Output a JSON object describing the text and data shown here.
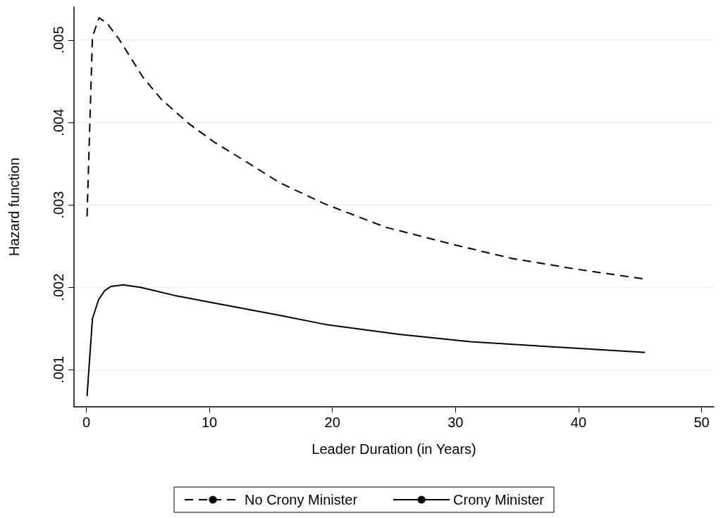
{
  "chart_data": {
    "type": "line",
    "xlabel": "Leader Duration (in Years)",
    "ylabel": "Hazard function",
    "xlim": [
      -1,
      51
    ],
    "xticks": [
      0,
      10,
      20,
      30,
      40,
      50
    ],
    "ylim": [
      0.00055,
      0.0054
    ],
    "yticks": [
      {
        "value": 0.001,
        "label": ".001"
      },
      {
        "value": 0.002,
        "label": ".002"
      },
      {
        "value": 0.003,
        "label": ".003"
      },
      {
        "value": 0.004,
        "label": ".004"
      },
      {
        "value": 0.005,
        "label": ".005"
      }
    ],
    "grid": "y",
    "legend": "bottom",
    "marker": "none",
    "series": [
      {
        "name": "No Crony Minister",
        "color": "#000000",
        "line_style": "dashed",
        "x": [
          0.06,
          0.5,
          1.04,
          1.7,
          2.66,
          4.6,
          6.1,
          8.3,
          10.4,
          12.6,
          15.7,
          19.4,
          24.3,
          29.5,
          34.6,
          39.8,
          45.4
        ],
        "values": [
          0.00286,
          0.00504,
          0.00527,
          0.0052,
          0.00501,
          0.00455,
          0.00428,
          0.00399,
          0.00376,
          0.00356,
          0.00327,
          0.00301,
          0.00273,
          0.00253,
          0.00235,
          0.00222,
          0.0021
        ]
      },
      {
        "name": "Crony Minister",
        "color": "#000000",
        "line_style": "solid",
        "x": [
          0.06,
          0.5,
          1.0,
          1.5,
          2.0,
          3.0,
          4.4,
          7.2,
          10,
          15.7,
          19.4,
          25.4,
          31.2,
          39.8,
          45.4
        ],
        "values": [
          0.00068,
          0.00162,
          0.00185,
          0.00196,
          0.00201,
          0.00203,
          0.002,
          0.0019,
          0.00182,
          0.00166,
          0.00155,
          0.00143,
          0.00134,
          0.00126,
          0.00121
        ]
      }
    ]
  }
}
